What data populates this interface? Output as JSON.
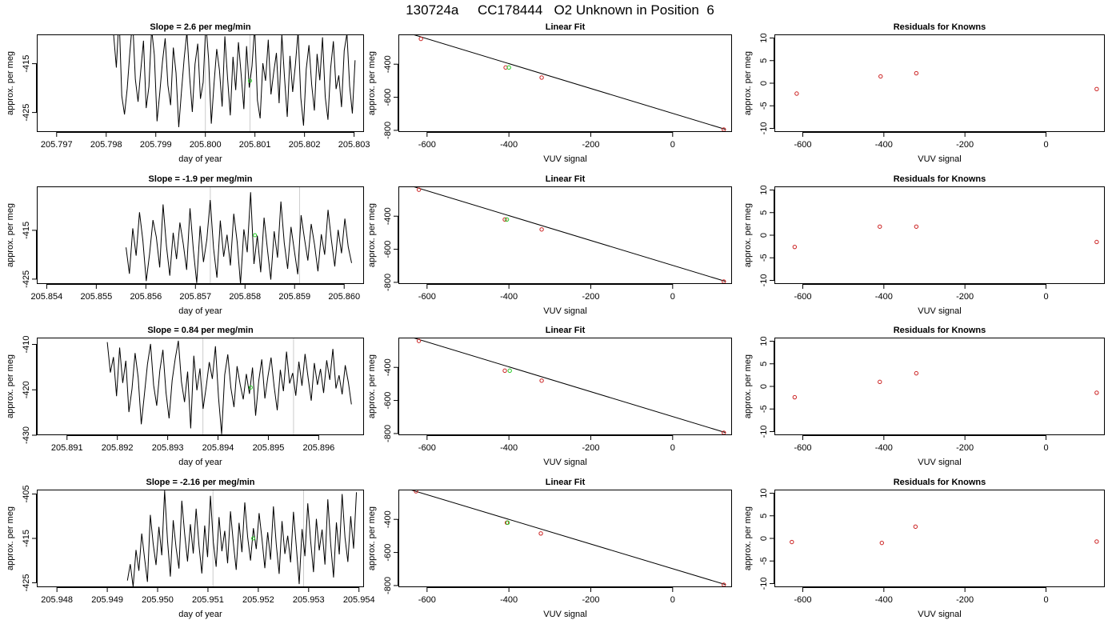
{
  "figure_title": "130724a     CC178444   O2 Unknown in Position  6",
  "colors": {
    "trace": "#000000",
    "unknown_point": "#22cc22",
    "known_point": "#cc2222",
    "marker_line": "#cccccc",
    "axis": "#000000"
  },
  "chart_data": [
    {
      "type": "line",
      "title": "Slope =  2.6  per meg/min",
      "xlabel": "day of year",
      "ylabel": "approx. per meg",
      "xlim": [
        205.7966,
        205.8032
      ],
      "ylim": [
        -429,
        -409
      ],
      "xticks": [
        205.797,
        205.798,
        205.799,
        205.8,
        205.801,
        205.802,
        205.803
      ],
      "xticklabels": [
        "205.797",
        "205.798",
        "205.799",
        "205.800",
        "205.801",
        "205.802",
        "205.803"
      ],
      "yticks": [
        -415,
        -425
      ],
      "yticklabels": [
        "-415",
        "-425"
      ],
      "markers_x": [
        205.8,
        205.8009
      ],
      "series_x_start": 205.79815,
      "series_x_end": 205.80302,
      "series": [
        {
          "values": [
            -409.1,
            -415.8,
            -405.0,
            -421.6,
            -425.4,
            -420.1,
            -412.5,
            -406.0,
            -418.2,
            -422.8,
            -416.4,
            -410.3,
            -424.1,
            -419.7,
            -407.9,
            -413.2,
            -426.8,
            -421.0,
            -414.6,
            -409.8,
            -419.4,
            -423.5,
            -411.7,
            -416.9,
            -428.0,
            -420.7,
            -413.9,
            -408.5,
            -417.6,
            -424.9,
            -415.1,
            -410.9,
            -422.2,
            -418.8,
            -406.7,
            -414.0,
            -427.3,
            -419.1,
            -412.0,
            -416.3,
            -423.8,
            -409.4,
            -418.0,
            -425.6,
            -413.6,
            -420.4,
            -410.6,
            -417.2,
            -424.3,
            -411.4,
            -419.9,
            -415.5,
            -407.3,
            -422.5,
            -426.2,
            -414.9,
            -418.5,
            -410.1,
            -421.3,
            -416.8,
            -412.8,
            -423.1,
            -409.0,
            -417.9,
            -425.9,
            -413.4,
            -420.8,
            -415.2,
            -408.3,
            -422.0,
            -427.7,
            -416.1,
            -411.2,
            -419.3,
            -424.6,
            -413.0,
            -418.4,
            -409.6,
            -421.8,
            -426.5,
            -415.9,
            -410.4,
            -420.2,
            -417.4,
            -423.9,
            -412.3,
            -408.8,
            -419.6,
            -425.2,
            -414.3
          ]
        }
      ],
      "unknown_point": {
        "x": 205.8009,
        "y": -418.5
      }
    },
    {
      "type": "scatter",
      "title": "Linear Fit",
      "xlabel": "VUV signal",
      "ylabel": "approx. per meg",
      "xlim": [
        -670,
        145
      ],
      "ylim": [
        -810,
        -220
      ],
      "xticks": [
        -600,
        -400,
        -200,
        0
      ],
      "xticklabels": [
        "-600",
        "-400",
        "-200",
        "0"
      ],
      "yticks": [
        -400,
        -600,
        -800
      ],
      "yticklabels": [
        "-400",
        "-600",
        "-800"
      ],
      "fit_line": [
        [
          -655,
          -205
        ],
        [
          130,
          -795
        ]
      ],
      "knowns": [
        [
          -615,
          -247
        ],
        [
          -408,
          -420
        ],
        [
          -320,
          -481
        ],
        [
          125,
          -795
        ]
      ],
      "unknown": [
        -400,
        -420
      ]
    },
    {
      "type": "scatter",
      "title": "Residuals for Knowns",
      "xlabel": "VUV signal",
      "ylabel": "approx. per meg",
      "xlim": [
        -670,
        145
      ],
      "ylim": [
        -10.8,
        10.8
      ],
      "xticks": [
        -600,
        -400,
        -200,
        0
      ],
      "xticklabels": [
        "-600",
        "-400",
        "-200",
        "0"
      ],
      "yticks": [
        10,
        5,
        0,
        -5,
        -10
      ],
      "yticklabels": [
        "10",
        "5",
        "0",
        "-5",
        "-10"
      ],
      "points": [
        [
          -615,
          -2.3
        ],
        [
          -408,
          1.5
        ],
        [
          -320,
          2.2
        ],
        [
          125,
          -1.3
        ]
      ]
    },
    {
      "type": "line",
      "title": "Slope =  -1.9  per meg/min",
      "xlabel": "day of year",
      "ylabel": "approx. per meg",
      "xlim": [
        205.8538,
        205.8604
      ],
      "ylim": [
        -426,
        -406
      ],
      "xticks": [
        205.854,
        205.855,
        205.856,
        205.857,
        205.858,
        205.859,
        205.86
      ],
      "xticklabels": [
        "205.854",
        "205.855",
        "205.856",
        "205.857",
        "205.858",
        "205.859",
        "205.860"
      ],
      "yticks": [
        -415,
        -425
      ],
      "yticklabels": [
        "-415",
        "-425"
      ],
      "markers_x": [
        205.8573,
        205.8591
      ],
      "series_x_start": 205.8556,
      "series_x_end": 205.86015,
      "series": [
        {
          "values": [
            -418.5,
            -423.9,
            -414.6,
            -420.2,
            -411.3,
            -417.1,
            -425.4,
            -419.8,
            -412.9,
            -416.4,
            -422.6,
            -409.7,
            -418.2,
            -424.3,
            -415.5,
            -420.9,
            -413.4,
            -417.8,
            -423.1,
            -410.5,
            -419.0,
            -425.8,
            -414.1,
            -421.5,
            -416.9,
            -408.8,
            -418.7,
            -424.7,
            -413.0,
            -420.4,
            -415.9,
            -422.2,
            -411.6,
            -417.3,
            -426.0,
            -414.8,
            -419.5,
            -407.2,
            -421.9,
            -416.1,
            -423.6,
            -412.4,
            -418.9,
            -425.1,
            -415.2,
            -420.6,
            -409.1,
            -417.6,
            -422.9,
            -414.3,
            -419.2,
            -424.0,
            -411.9,
            -416.7,
            -421.2,
            -413.7,
            -418.0,
            -423.4,
            -415.8,
            -420.0,
            -410.8,
            -417.0,
            -422.4,
            -414.9,
            -419.7,
            -412.6,
            -418.4,
            -421.7
          ]
        }
      ],
      "unknown_point": {
        "x": 205.8582,
        "y": -416.0
      }
    },
    {
      "type": "scatter",
      "title": "Linear Fit",
      "xlabel": "VUV signal",
      "ylabel": "approx. per meg",
      "xlim": [
        -670,
        145
      ],
      "ylim": [
        -810,
        -220
      ],
      "xticks": [
        -600,
        -400,
        -200,
        0
      ],
      "xticklabels": [
        "-600",
        "-400",
        "-200",
        "0"
      ],
      "yticks": [
        -400,
        -600,
        -800
      ],
      "yticklabels": [
        "-400",
        "-600",
        "-800"
      ],
      "fit_line": [
        [
          -655,
          -205
        ],
        [
          130,
          -795
        ]
      ],
      "knowns": [
        [
          -620,
          -240
        ],
        [
          -410,
          -420
        ],
        [
          -320,
          -480
        ],
        [
          125,
          -795
        ]
      ],
      "unknown": [
        -405,
        -420
      ]
    },
    {
      "type": "scatter",
      "title": "Residuals for Knowns",
      "xlabel": "VUV signal",
      "ylabel": "approx. per meg",
      "xlim": [
        -670,
        145
      ],
      "ylim": [
        -10.8,
        10.8
      ],
      "xticks": [
        -600,
        -400,
        -200,
        0
      ],
      "xticklabels": [
        "-600",
        "-400",
        "-200",
        "0"
      ],
      "yticks": [
        10,
        5,
        0,
        -5,
        -10
      ],
      "yticklabels": [
        "10",
        "5",
        "0",
        "-5",
        "-10"
      ],
      "points": [
        [
          -620,
          -2.6
        ],
        [
          -410,
          1.9
        ],
        [
          -320,
          1.9
        ],
        [
          125,
          -1.5
        ]
      ]
    },
    {
      "type": "line",
      "title": "Slope =  0.84  per meg/min",
      "xlabel": "day of year",
      "ylabel": "approx. per meg",
      "xlim": [
        205.8904,
        205.8969
      ],
      "ylim": [
        -430,
        -408.5
      ],
      "xticks": [
        205.891,
        205.892,
        205.893,
        205.894,
        205.895,
        205.896
      ],
      "xticklabels": [
        "205.891",
        "205.892",
        "205.893",
        "205.894",
        "205.895",
        "205.896"
      ],
      "yticks": [
        -410,
        -420,
        -430
      ],
      "yticklabels": [
        "-410",
        "-420",
        "-430"
      ],
      "markers_x": [
        205.8937,
        205.8955
      ],
      "series_x_start": 205.8918,
      "series_x_end": 205.89665,
      "series": [
        {
          "values": [
            -409.5,
            -416.2,
            -412.8,
            -421.4,
            -410.7,
            -418.5,
            -413.6,
            -424.9,
            -419.8,
            -411.9,
            -417.3,
            -427.6,
            -421.1,
            -414.4,
            -409.9,
            -419.0,
            -423.5,
            -415.8,
            -411.2,
            -420.6,
            -426.3,
            -417.9,
            -413.1,
            -409.2,
            -418.2,
            -422.7,
            -416.0,
            -428.5,
            -412.5,
            -420.1,
            -415.3,
            -424.2,
            -419.4,
            -413.9,
            -417.6,
            -410.4,
            -421.7,
            -429.8,
            -416.7,
            -412.2,
            -419.6,
            -423.8,
            -414.8,
            -418.8,
            -422.1,
            -416.5,
            -420.9,
            -415.1,
            -425.7,
            -418.1,
            -413.3,
            -421.9,
            -417.0,
            -412.9,
            -419.3,
            -424.5,
            -415.6,
            -420.3,
            -411.6,
            -418.6,
            -416.3,
            -421.3,
            -413.8,
            -419.1,
            -412.1,
            -417.4,
            -422.4,
            -414.1,
            -418.9,
            -415.4,
            -420.7,
            -413.5,
            -417.8,
            -411.0,
            -419.7,
            -416.8,
            -421.0,
            -414.6,
            -418.3,
            -423.2
          ]
        }
      ],
      "unknown_point": {
        "x": 205.89465,
        "y": -419.5
      }
    },
    {
      "type": "scatter",
      "title": "Linear Fit",
      "xlabel": "VUV signal",
      "ylabel": "approx. per meg",
      "xlim": [
        -670,
        145
      ],
      "ylim": [
        -810,
        -220
      ],
      "xticks": [
        -600,
        -400,
        -200,
        0
      ],
      "xticklabels": [
        "-600",
        "-400",
        "-200",
        "0"
      ],
      "yticks": [
        -400,
        -600,
        -800
      ],
      "yticklabels": [
        "-400",
        "-600",
        "-800"
      ],
      "fit_line": [
        [
          -655,
          -205
        ],
        [
          130,
          -795
        ]
      ],
      "knowns": [
        [
          -620,
          -240
        ],
        [
          -410,
          -420
        ],
        [
          -320,
          -480
        ],
        [
          125,
          -795
        ]
      ],
      "unknown": [
        -398,
        -420
      ]
    },
    {
      "type": "scatter",
      "title": "Residuals for Knowns",
      "xlabel": "VUV signal",
      "ylabel": "approx. per meg",
      "xlim": [
        -670,
        145
      ],
      "ylim": [
        -10.8,
        10.8
      ],
      "xticks": [
        -600,
        -400,
        -200,
        0
      ],
      "xticklabels": [
        "-600",
        "-400",
        "-200",
        "0"
      ],
      "yticks": [
        10,
        5,
        0,
        -5,
        -10
      ],
      "yticklabels": [
        "10",
        "5",
        "0",
        "-5",
        "-10"
      ],
      "points": [
        [
          -620,
          -2.4
        ],
        [
          -410,
          1.0
        ],
        [
          -320,
          2.9
        ],
        [
          125,
          -1.4
        ]
      ]
    },
    {
      "type": "line",
      "title": "Slope =  -2.16  per meg/min",
      "xlabel": "day of year",
      "ylabel": "approx. per meg",
      "xlim": [
        205.9476,
        205.9541
      ],
      "ylim": [
        -426,
        -404
      ],
      "xticks": [
        205.948,
        205.949,
        205.95,
        205.951,
        205.952,
        205.953,
        205.954
      ],
      "xticklabels": [
        "205.948",
        "205.949",
        "205.950",
        "205.951",
        "205.952",
        "205.953",
        "205.954"
      ],
      "yticks": [
        -405,
        -415,
        -425
      ],
      "yticklabels": [
        "-405",
        "-415",
        "-425"
      ],
      "markers_x": [
        205.9511,
        205.9529
      ],
      "series_x_start": 205.9494,
      "series_x_end": 205.95395,
      "series": [
        {
          "values": [
            -424.5,
            -420.8,
            -425.9,
            -417.6,
            -422.3,
            -413.9,
            -419.5,
            -424.8,
            -409.7,
            -416.2,
            -421.0,
            -412.4,
            -418.8,
            -404.2,
            -415.4,
            -423.6,
            -410.9,
            -417.1,
            -421.8,
            -406.5,
            -414.0,
            -420.2,
            -411.8,
            -418.4,
            -408.3,
            -416.6,
            -422.9,
            -412.1,
            -419.2,
            -405.4,
            -415.8,
            -421.4,
            -410.2,
            -417.9,
            -413.3,
            -420.6,
            -408.9,
            -416.0,
            -422.1,
            -411.5,
            -418.1,
            -406.9,
            -414.7,
            -420.0,
            -412.7,
            -417.4,
            -409.3,
            -415.1,
            -421.7,
            -413.6,
            -419.8,
            -407.8,
            -416.4,
            -423.0,
            -411.1,
            -418.5,
            -414.4,
            -420.4,
            -409.0,
            -416.9,
            -425.3,
            -412.9,
            -419.0,
            -407.1,
            -415.6,
            -422.6,
            -410.6,
            -417.7,
            -413.0,
            -420.9,
            -406.2,
            -416.3,
            -423.8,
            -411.4,
            -418.6,
            -405.0,
            -414.8,
            -420.3,
            -410.0,
            -417.3,
            -404.6
          ]
        }
      ],
      "unknown_point": {
        "x": 205.9519,
        "y": -415.0
      }
    },
    {
      "type": "scatter",
      "title": "Linear Fit",
      "xlabel": "VUV signal",
      "ylabel": "approx. per meg",
      "xlim": [
        -670,
        145
      ],
      "ylim": [
        -810,
        -220
      ],
      "xticks": [
        -600,
        -400,
        -200,
        0
      ],
      "xticklabels": [
        "-600",
        "-400",
        "-200",
        "0"
      ],
      "yticks": [
        -400,
        -600,
        -800
      ],
      "yticklabels": [
        "-400",
        "-600",
        "-800"
      ],
      "fit_line": [
        [
          -655,
          -210
        ],
        [
          130,
          -795
        ]
      ],
      "knowns": [
        [
          -627,
          -230
        ],
        [
          -405,
          -420
        ],
        [
          -322,
          -485
        ],
        [
          125,
          -795
        ]
      ],
      "unknown": [
        -403,
        -420
      ]
    },
    {
      "type": "scatter",
      "title": "Residuals for Knowns",
      "xlabel": "VUV signal",
      "ylabel": "approx. per meg",
      "xlim": [
        -670,
        145
      ],
      "ylim": [
        -10.8,
        10.8
      ],
      "xticks": [
        -600,
        -400,
        -200,
        0
      ],
      "xticklabels": [
        "-600",
        "-400",
        "-200",
        "0"
      ],
      "yticks": [
        10,
        5,
        0,
        -5,
        -10
      ],
      "yticklabels": [
        "10",
        "5",
        "0",
        "-5",
        "-10"
      ],
      "points": [
        [
          -627,
          -0.8
        ],
        [
          -405,
          -1.0
        ],
        [
          -322,
          2.6
        ],
        [
          125,
          -0.7
        ]
      ]
    }
  ]
}
